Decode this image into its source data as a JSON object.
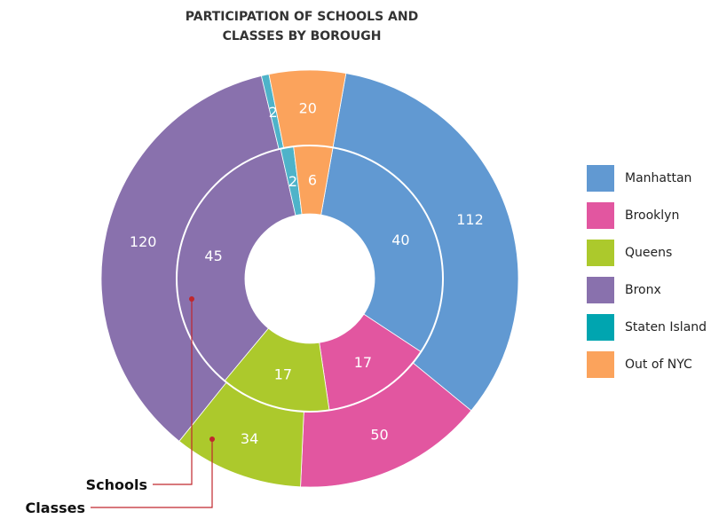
{
  "chart_data": {
    "type": "pie",
    "title_lines": [
      "PARTICIPATION OF SCHOOLS AND",
      "CLASSES BY BOROUGH"
    ],
    "categories": [
      "Manhattan",
      "Brooklyn",
      "Queens",
      "Bronx",
      "Staten Island",
      "Out of NYC"
    ],
    "colors": [
      "#6199d2",
      "#e256a0",
      "#acc92c",
      "#8971ad",
      "#4eb3c9",
      "#fba35c"
    ],
    "legend_swatch_colors": [
      "#6199d2",
      "#e256a0",
      "#acc92c",
      "#8971ad",
      "#00a5b0",
      "#fba35c"
    ],
    "series": [
      {
        "name": "Schools",
        "values": [
          40,
          17,
          17,
          45,
          2,
          6
        ]
      },
      {
        "name": "Classes",
        "values": [
          112,
          50,
          34,
          120,
          2,
          20
        ]
      }
    ],
    "legend_position": "right"
  }
}
